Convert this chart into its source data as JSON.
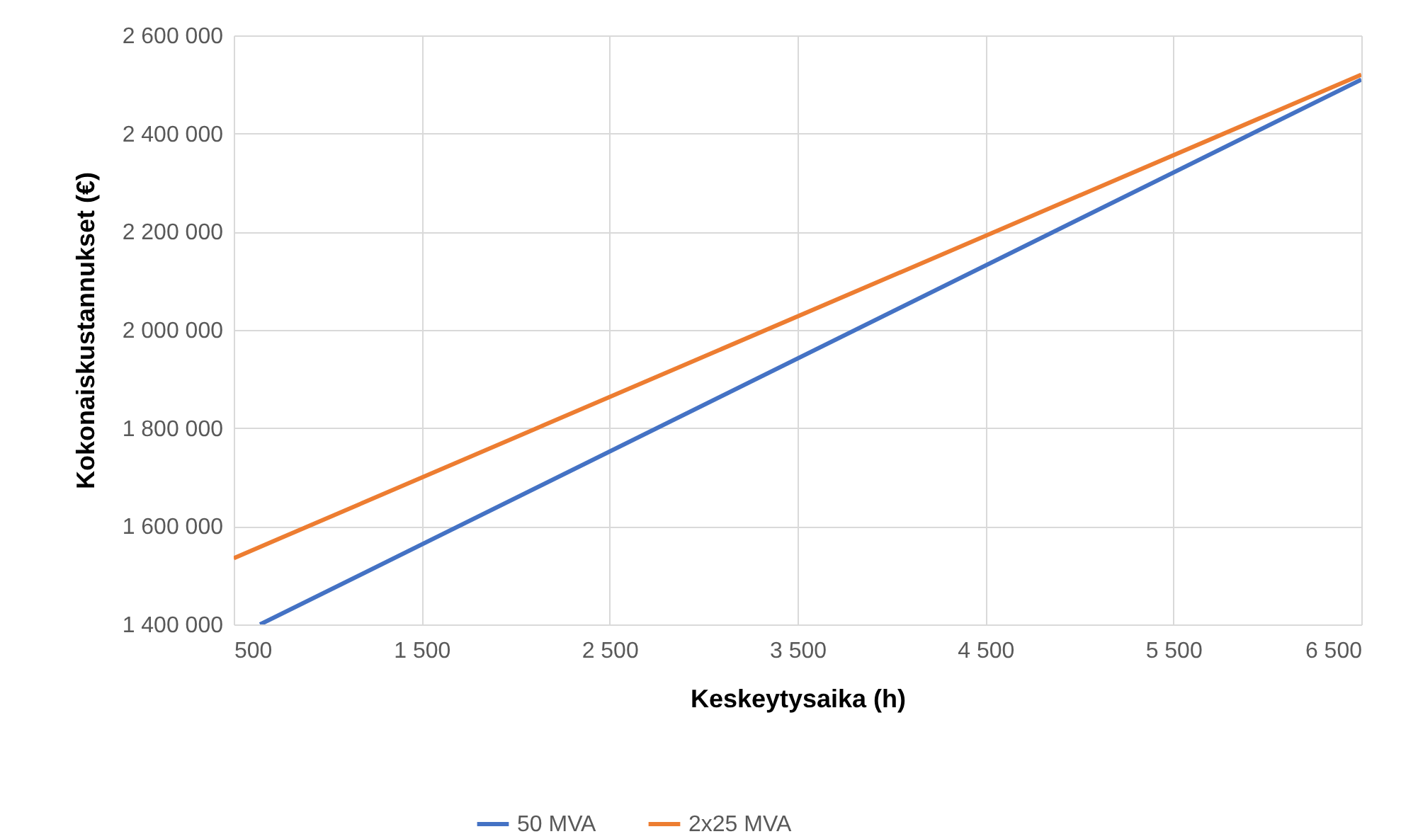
{
  "chart_data": {
    "type": "line",
    "xlabel": "Keskeytysaika (h)",
    "ylabel": "Kokonaiskustannukset (€)",
    "series": [
      {
        "name": "50 MVA",
        "color": "#4472c4",
        "x": [
          640,
          6500
        ],
        "values": [
          1400000,
          2510000
        ]
      },
      {
        "name": "2x25 MVA",
        "color": "#ed7d31",
        "x": [
          500,
          6500
        ],
        "values": [
          1535000,
          2520000
        ]
      }
    ],
    "xlim": [
      500,
      6500
    ],
    "xticks": [
      500,
      {
        "value": 1500,
        "label": "1 500"
      },
      {
        "value": 2500,
        "label": "2 500"
      },
      {
        "value": 3500,
        "label": "3 500"
      },
      {
        "value": 4500,
        "label": "4 500"
      },
      {
        "value": 5500,
        "label": "5 500"
      },
      {
        "value": 6500,
        "label": "6 500"
      }
    ],
    "ylim": [
      1400000,
      2600000
    ],
    "yticks": [
      {
        "value": 1400000,
        "label": "1 400 000"
      },
      {
        "value": 1600000,
        "label": "1 600 000"
      },
      {
        "value": 1800000,
        "label": "1 800 000"
      },
      {
        "value": 2000000,
        "label": "2 000 000"
      },
      {
        "value": 2200000,
        "label": "2 200 000"
      },
      {
        "value": 2400000,
        "label": "2 400 000"
      },
      {
        "value": 2600000,
        "label": "2 600 000"
      }
    ],
    "grid": true,
    "legend": "bottom",
    "marker": "none",
    "line_style": "solid"
  }
}
